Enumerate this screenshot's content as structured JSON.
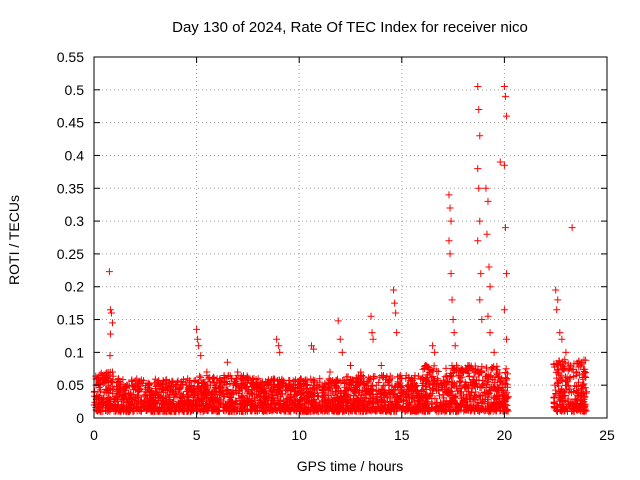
{
  "chart_data": {
    "type": "scatter",
    "title": "Day 130 of 2024, Rate Of TEC Index for receiver nico",
    "xlabel": "GPS time / hours",
    "ylabel": "ROTI / TECUs",
    "xlim": [
      0,
      25
    ],
    "ylim": [
      0,
      0.55
    ],
    "x_ticks": [
      0,
      5,
      10,
      15,
      20,
      25
    ],
    "x_tick_labels": [
      "0",
      "5",
      "10",
      "15",
      "20",
      "25"
    ],
    "y_ticks": [
      0,
      0.05,
      0.1,
      0.15,
      0.2,
      0.25,
      0.3,
      0.35,
      0.4,
      0.45,
      0.5,
      0.55
    ],
    "y_tick_labels": [
      "0",
      "0.05",
      "0.1",
      "0.15",
      "0.2",
      "0.25",
      "0.3",
      "0.35",
      "0.4",
      "0.45",
      "0.5",
      "0.55"
    ],
    "grid": true,
    "marker": "+",
    "marker_color": "#ff0000",
    "series": [
      {
        "values": [
          [
            0.1,
            0.05
          ],
          [
            0.3,
            0.04
          ],
          [
            0.5,
            0.06
          ],
          [
            0.7,
            0.05
          ],
          [
            0.9,
            0.07
          ],
          [
            0.75,
            0.223
          ],
          [
            0.8,
            0.165
          ],
          [
            0.85,
            0.16
          ],
          [
            0.9,
            0.145
          ],
          [
            0.8,
            0.128
          ],
          [
            0.78,
            0.095
          ],
          [
            1.2,
            0.06
          ],
          [
            1.6,
            0.05
          ],
          [
            2.0,
            0.05
          ],
          [
            2.5,
            0.04
          ],
          [
            3.0,
            0.045
          ],
          [
            3.5,
            0.05
          ],
          [
            4.0,
            0.04
          ],
          [
            4.5,
            0.05
          ],
          [
            5.0,
            0.135
          ],
          [
            5.05,
            0.12
          ],
          [
            5.1,
            0.11
          ],
          [
            5.2,
            0.095
          ],
          [
            5.5,
            0.07
          ],
          [
            6.0,
            0.06
          ],
          [
            6.5,
            0.085
          ],
          [
            7.0,
            0.07
          ],
          [
            7.5,
            0.06
          ],
          [
            8.0,
            0.06
          ],
          [
            8.9,
            0.12
          ],
          [
            9.0,
            0.11
          ],
          [
            9.05,
            0.1
          ],
          [
            9.5,
            0.05
          ],
          [
            10.0,
            0.04
          ],
          [
            10.6,
            0.11
          ],
          [
            10.7,
            0.105
          ],
          [
            11.0,
            0.06
          ],
          [
            11.5,
            0.07
          ],
          [
            11.9,
            0.148
          ],
          [
            12.0,
            0.12
          ],
          [
            12.1,
            0.1
          ],
          [
            12.5,
            0.08
          ],
          [
            13.0,
            0.07
          ],
          [
            13.5,
            0.155
          ],
          [
            13.55,
            0.13
          ],
          [
            13.6,
            0.12
          ],
          [
            14.0,
            0.08
          ],
          [
            14.6,
            0.195
          ],
          [
            14.65,
            0.175
          ],
          [
            14.7,
            0.16
          ],
          [
            14.75,
            0.13
          ],
          [
            15.0,
            0.06
          ],
          [
            15.5,
            0.05
          ],
          [
            16.0,
            0.06
          ],
          [
            16.5,
            0.11
          ],
          [
            16.6,
            0.1
          ],
          [
            17.3,
            0.34
          ],
          [
            17.35,
            0.32
          ],
          [
            17.4,
            0.3
          ],
          [
            17.3,
            0.27
          ],
          [
            17.35,
            0.25
          ],
          [
            17.4,
            0.22
          ],
          [
            17.45,
            0.18
          ],
          [
            17.5,
            0.15
          ],
          [
            17.55,
            0.13
          ],
          [
            17.6,
            0.11
          ],
          [
            18.7,
            0.505
          ],
          [
            18.75,
            0.47
          ],
          [
            18.8,
            0.43
          ],
          [
            18.7,
            0.38
          ],
          [
            18.75,
            0.35
          ],
          [
            18.8,
            0.3
          ],
          [
            18.7,
            0.27
          ],
          [
            18.85,
            0.22
          ],
          [
            18.8,
            0.18
          ],
          [
            18.9,
            0.15
          ],
          [
            19.1,
            0.35
          ],
          [
            19.2,
            0.33
          ],
          [
            19.15,
            0.28
          ],
          [
            19.25,
            0.23
          ],
          [
            19.3,
            0.2
          ],
          [
            19.2,
            0.155
          ],
          [
            19.3,
            0.13
          ],
          [
            19.5,
            0.1
          ],
          [
            19.8,
            0.39
          ],
          [
            20.0,
            0.505
          ],
          [
            20.05,
            0.49
          ],
          [
            20.1,
            0.46
          ],
          [
            20.0,
            0.385
          ],
          [
            20.05,
            0.29
          ],
          [
            20.1,
            0.22
          ],
          [
            20.0,
            0.165
          ],
          [
            20.1,
            0.12
          ],
          [
            22.5,
            0.195
          ],
          [
            22.6,
            0.18
          ],
          [
            22.55,
            0.165
          ],
          [
            22.7,
            0.13
          ],
          [
            22.8,
            0.12
          ],
          [
            23.0,
            0.1
          ],
          [
            23.3,
            0.29
          ],
          [
            23.5,
            0.07
          ],
          [
            23.8,
            0.05
          ],
          [
            24.0,
            0.04
          ]
        ]
      }
    ],
    "dense_band": [
      {
        "x": [
          0.0,
          1.0
        ],
        "y": [
          0.01,
          0.07
        ]
      },
      {
        "x": [
          1.0,
          5.0
        ],
        "y": [
          0.01,
          0.06
        ]
      },
      {
        "x": [
          5.0,
          8.0
        ],
        "y": [
          0.01,
          0.065
        ]
      },
      {
        "x": [
          8.0,
          12.0
        ],
        "y": [
          0.01,
          0.06
        ]
      },
      {
        "x": [
          12.0,
          16.0
        ],
        "y": [
          0.01,
          0.065
        ]
      },
      {
        "x": [
          16.0,
          20.2
        ],
        "y": [
          0.01,
          0.08
        ]
      },
      {
        "x": [
          22.4,
          24.0
        ],
        "y": [
          0.01,
          0.09
        ]
      }
    ]
  }
}
